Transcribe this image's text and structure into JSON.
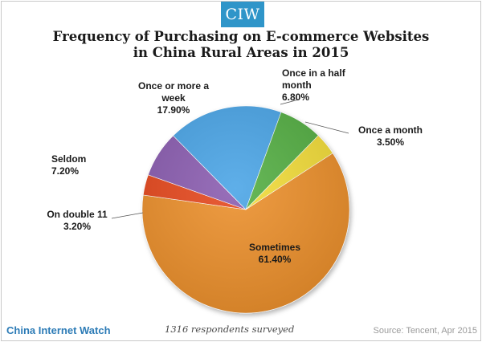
{
  "brand": {
    "logo_text": "CIW",
    "logo_color": "#2f95c9"
  },
  "chart_data": {
    "type": "pie",
    "title_lines": [
      "Frequency of Purchasing on E-commerce Websites",
      "in China Rural Areas in 2015"
    ],
    "slices": [
      {
        "label": "Sometimes",
        "value": 61.4,
        "value_text": "61.40%",
        "color": "#ec8f2a"
      },
      {
        "label": "On double 11",
        "value": 3.2,
        "value_text": "3.20%",
        "color": "#e6461d"
      },
      {
        "label": "Seldom",
        "value": 7.2,
        "value_text": "7.20%",
        "color": "#8a5bb0"
      },
      {
        "label": "Once or more a week",
        "value": 17.9,
        "value_text": "17.90%",
        "color": "#4aa4e6"
      },
      {
        "label": "Once in a half month",
        "value": 6.8,
        "value_text": "6.80%",
        "color": "#52ae42"
      },
      {
        "label": "Once a month",
        "value": 3.5,
        "value_text": "3.50%",
        "color": "#f2dc37"
      }
    ],
    "labels": {
      "sometimes": {
        "lines": [
          "Sometimes"
        ],
        "value": "61.40%"
      },
      "double11": {
        "lines": [
          "On double 11"
        ],
        "value": "3.20%"
      },
      "seldom": {
        "lines": [
          "Seldom"
        ],
        "value": "7.20%"
      },
      "week": {
        "lines": [
          "Once or more a",
          "week"
        ],
        "value": "17.90%"
      },
      "halfmonth": {
        "lines": [
          "Once in a half",
          "month"
        ],
        "value": "6.80%"
      },
      "month": {
        "lines": [
          "Once a month"
        ],
        "value": "3.50%"
      }
    }
  },
  "footer": {
    "site": "China Internet Watch",
    "note": "1316 respondents surveyed",
    "source": "Source: Tencent, Apr 2015"
  }
}
